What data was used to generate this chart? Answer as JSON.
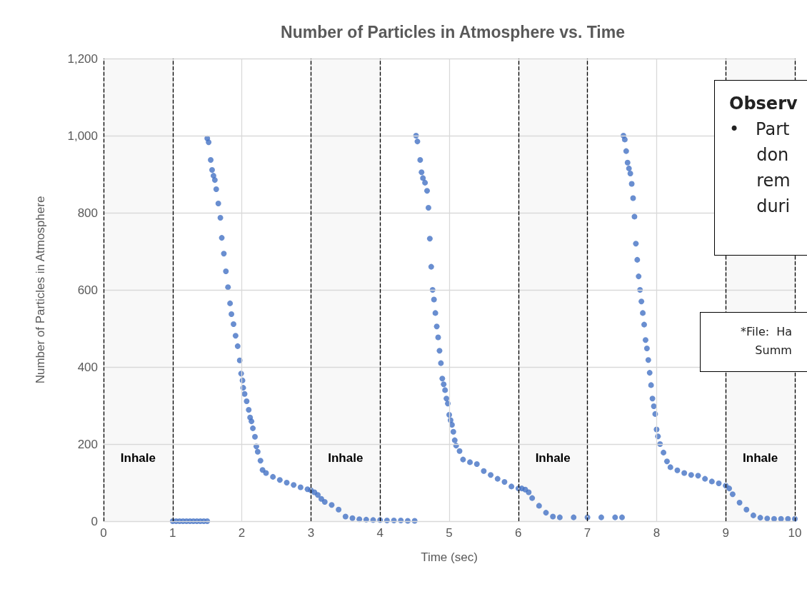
{
  "chart_data": {
    "type": "scatter",
    "title": "Number of Particles in Atmosphere vs. Time",
    "xlabel": "Time (sec)",
    "ylabel": "Number of Particles in Atmosphere",
    "series": [
      {
        "color": "#4472c4",
        "x": [
          1.0,
          1.05,
          1.1,
          1.15,
          1.2,
          1.25,
          1.3,
          1.35,
          1.4,
          1.45,
          1.5,
          1.5,
          1.52,
          1.55,
          1.57,
          1.59,
          1.61,
          1.63,
          1.66,
          1.69,
          1.71,
          1.74,
          1.77,
          1.8,
          1.83,
          1.85,
          1.88,
          1.91,
          1.94,
          1.97,
          1.99,
          2.01,
          2.02,
          2.04,
          2.07,
          2.1,
          2.12,
          2.14,
          2.16,
          2.19,
          2.21,
          2.23,
          2.27,
          2.3,
          2.35,
          2.45,
          2.55,
          2.65,
          2.75,
          2.85,
          2.95,
          3.0,
          3.05,
          3.1,
          3.15,
          3.2,
          3.3,
          3.4,
          3.5,
          3.6,
          3.7,
          3.8,
          3.9,
          4.0,
          4.1,
          4.2,
          4.3,
          4.4,
          4.5,
          4.52,
          4.54,
          4.58,
          4.6,
          4.62,
          4.65,
          4.68,
          4.7,
          4.72,
          4.74,
          4.76,
          4.78,
          4.8,
          4.82,
          4.84,
          4.86,
          4.88,
          4.9,
          4.92,
          4.94,
          4.96,
          4.98,
          5.0,
          5.02,
          5.04,
          5.06,
          5.08,
          5.1,
          5.15,
          5.2,
          5.3,
          5.4,
          5.5,
          5.6,
          5.7,
          5.8,
          5.9,
          6.0,
          6.05,
          6.1,
          6.15,
          6.2,
          6.3,
          6.4,
          6.5,
          6.6,
          6.8,
          7.0,
          7.2,
          7.4,
          7.5,
          7.52,
          7.54,
          7.56,
          7.58,
          7.6,
          7.62,
          7.64,
          7.66,
          7.68,
          7.7,
          7.72,
          7.74,
          7.76,
          7.78,
          7.8,
          7.82,
          7.84,
          7.86,
          7.88,
          7.9,
          7.92,
          7.94,
          7.96,
          7.98,
          8.0,
          8.02,
          8.05,
          8.1,
          8.15,
          8.2,
          8.3,
          8.4,
          8.5,
          8.6,
          8.7,
          8.8,
          8.9,
          9.0,
          9.05,
          9.1,
          9.2,
          9.3,
          9.4,
          9.5,
          9.6,
          9.7,
          9.8,
          9.9,
          10.0
        ],
        "values": [
          0,
          0,
          0,
          0,
          0,
          0,
          0,
          0,
          0,
          0,
          0,
          993,
          983,
          937,
          911,
          896,
          885,
          861,
          824,
          787,
          735,
          694,
          648,
          607,
          565,
          537,
          511,
          481,
          454,
          417,
          383,
          365,
          346,
          330,
          311,
          289,
          269,
          259,
          241,
          219,
          194,
          180,
          157,
          133,
          125,
          115,
          107,
          100,
          94,
          88,
          83,
          80,
          75,
          68,
          58,
          50,
          42,
          30,
          12,
          8,
          5,
          4,
          3,
          3,
          2,
          2,
          2,
          1,
          1,
          1000,
          985,
          937,
          905,
          890,
          878,
          857,
          813,
          733,
          660,
          600,
          575,
          540,
          505,
          477,
          442,
          410,
          370,
          355,
          340,
          318,
          305,
          276,
          262,
          250,
          232,
          210,
          196,
          182,
          160,
          153,
          148,
          130,
          120,
          110,
          102,
          90,
          85,
          85,
          82,
          75,
          60,
          40,
          22,
          12,
          10,
          10,
          10,
          10,
          10,
          10,
          1000,
          990,
          960,
          930,
          915,
          902,
          875,
          838,
          790,
          720,
          678,
          635,
          600,
          570,
          540,
          510,
          470,
          448,
          418,
          385,
          353,
          318,
          298,
          278,
          238,
          220,
          200,
          178,
          155,
          140,
          132,
          125,
          120,
          118,
          110,
          103,
          98,
          92,
          85,
          70,
          48,
          30,
          15,
          9,
          7,
          6,
          6,
          6,
          6
        ]
      }
    ],
    "xlim": [
      0,
      10
    ],
    "xticks": [
      0,
      1,
      2,
      3,
      4,
      5,
      6,
      7,
      8,
      9,
      10
    ],
    "ylim": [
      0,
      1200
    ],
    "yticks": [
      0,
      200,
      400,
      600,
      800,
      {
        "value": 1000,
        "label": "1,000"
      },
      {
        "value": 1200,
        "label": "1,200"
      }
    ],
    "grid": true,
    "marker": "circle",
    "bands": [
      {
        "axis": "x",
        "from": 0,
        "to": 1,
        "label": "Inhale"
      },
      {
        "axis": "x",
        "from": 3,
        "to": 4,
        "label": "Inhale"
      },
      {
        "axis": "x",
        "from": 6,
        "to": 7,
        "label": "Inhale"
      },
      {
        "axis": "x",
        "from": 9,
        "to": 10,
        "label": "Inhale"
      }
    ],
    "annotations": [
      "Observ",
      "•   Part\n     don\n     rem\n     duri",
      "*File:  Ha\n    Summ"
    ]
  }
}
